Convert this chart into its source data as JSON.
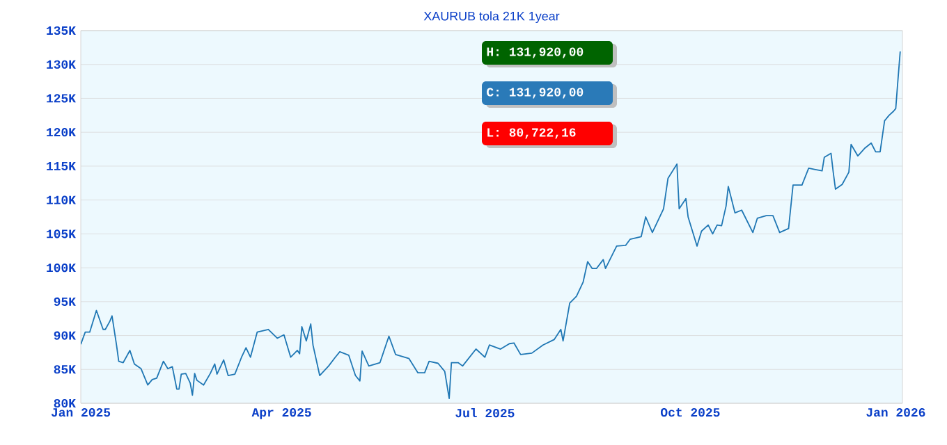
{
  "chart_data": {
    "type": "line",
    "title": "XAURUB tola 21K 1year",
    "x": [
      "2025-01-01",
      "2025-01-03",
      "2025-01-05",
      "2025-01-08",
      "2025-01-11",
      "2025-01-12",
      "2025-01-14",
      "2025-01-15",
      "2025-01-17",
      "2025-01-18",
      "2025-01-20",
      "2025-01-23",
      "2025-01-25",
      "2025-01-28",
      "2025-01-31",
      "2025-02-02",
      "2025-02-04",
      "2025-02-07",
      "2025-02-09",
      "2025-02-11",
      "2025-02-13",
      "2025-02-14",
      "2025-02-15",
      "2025-02-17",
      "2025-02-19",
      "2025-02-20",
      "2025-02-21",
      "2025-02-22",
      "2025-02-25",
      "2025-02-28",
      "2025-03-02",
      "2025-03-03",
      "2025-03-06",
      "2025-03-08",
      "2025-03-11",
      "2025-03-14",
      "2025-03-16",
      "2025-03-18",
      "2025-03-21",
      "2025-03-26",
      "2025-03-30",
      "2025-04-02",
      "2025-04-05",
      "2025-04-08",
      "2025-04-09",
      "2025-04-10",
      "2025-04-12",
      "2025-04-14",
      "2025-04-15",
      "2025-04-18",
      "2025-04-22",
      "2025-04-25",
      "2025-04-27",
      "2025-05-01",
      "2025-05-04",
      "2025-05-06",
      "2025-05-07",
      "2025-05-10",
      "2025-05-15",
      "2025-05-19",
      "2025-05-22",
      "2025-05-28",
      "2025-06-01",
      "2025-06-04",
      "2025-06-06",
      "2025-06-10",
      "2025-06-13",
      "2025-06-15",
      "2025-06-16",
      "2025-06-19",
      "2025-06-21",
      "2025-06-27",
      "2025-07-01",
      "2025-07-03",
      "2025-07-08",
      "2025-07-12",
      "2025-07-14",
      "2025-07-17",
      "2025-07-22",
      "2025-07-27",
      "2025-08-01",
      "2025-08-04",
      "2025-08-05",
      "2025-08-08",
      "2025-08-11",
      "2025-08-14",
      "2025-08-16",
      "2025-08-18",
      "2025-08-20",
      "2025-08-23",
      "2025-08-24",
      "2025-08-29",
      "2025-09-02",
      "2025-09-04",
      "2025-09-09",
      "2025-09-11",
      "2025-09-14",
      "2025-09-19",
      "2025-09-21",
      "2025-09-25",
      "2025-09-26",
      "2025-09-29",
      "2025-09-30",
      "2025-10-04",
      "2025-10-06",
      "2025-10-09",
      "2025-10-11",
      "2025-10-13",
      "2025-10-15",
      "2025-10-17",
      "2025-10-18",
      "2025-10-21",
      "2025-10-24",
      "2025-10-29",
      "2025-10-31",
      "2025-11-04",
      "2025-11-07",
      "2025-11-10",
      "2025-11-14",
      "2025-11-16",
      "2025-11-20",
      "2025-11-23",
      "2025-11-26",
      "2025-11-29",
      "2025-11-30",
      "2025-12-03",
      "2025-12-04",
      "2025-12-05",
      "2025-12-08",
      "2025-12-11",
      "2025-12-12",
      "2025-12-15",
      "2025-12-18",
      "2025-12-21",
      "2025-12-23",
      "2025-12-25",
      "2025-12-27",
      "2025-12-29",
      "2025-12-31",
      "2026-01-01",
      "2026-01-02",
      "2026-01-03"
    ],
    "series": [
      {
        "color": "#1f77b4",
        "values": [
          88700,
          90500,
          90500,
          93700,
          90900,
          90900,
          92100,
          92900,
          88600,
          86200,
          86000,
          87800,
          85800,
          85100,
          82700,
          83500,
          83700,
          86200,
          85100,
          85400,
          82100,
          82100,
          84300,
          84400,
          83000,
          81200,
          84400,
          83400,
          82700,
          84400,
          85800,
          84300,
          86400,
          84100,
          84300,
          86800,
          88200,
          86800,
          90500,
          90900,
          89600,
          90100,
          86800,
          87800,
          87300,
          91300,
          89200,
          91700,
          88600,
          84100,
          85500,
          86800,
          87600,
          87100,
          84100,
          83300,
          87700,
          85500,
          86000,
          89900,
          87200,
          86600,
          84500,
          84500,
          86200,
          85900,
          84700,
          80700,
          86000,
          86000,
          85500,
          88000,
          86800,
          88600,
          88000,
          88800,
          88900,
          87200,
          87400,
          88600,
          89400,
          90900,
          89200,
          94800,
          95800,
          97900,
          100900,
          99900,
          99900,
          101200,
          99900,
          103200,
          103300,
          104200,
          104600,
          107500,
          105200,
          108700,
          113200,
          115300,
          108700,
          110200,
          107500,
          103200,
          105400,
          106300,
          105000,
          106300,
          106200,
          109100,
          112000,
          108100,
          108500,
          105200,
          107300,
          107700,
          107700,
          105200,
          105800,
          112200,
          112200,
          114700,
          114500,
          114300,
          116300,
          116900,
          114100,
          111600,
          112300,
          114100,
          118200,
          116500,
          117600,
          118400,
          117100,
          117100,
          121700,
          122500,
          123100,
          123500,
          127800,
          131920
        ]
      }
    ],
    "xlim": [
      "2025-01-01",
      "2026-01-04"
    ],
    "xticks": [
      {
        "value": "2025-01-01",
        "label": "Jan 2025"
      },
      {
        "value": "2025-04-01",
        "label": "Apr 2025"
      },
      {
        "value": "2025-07-01",
        "label": "Jul 2025"
      },
      {
        "value": "2025-10-01",
        "label": "Oct 2025"
      },
      {
        "value": "2026-01-01",
        "label": "Jan 2026"
      }
    ],
    "ylim": [
      80000,
      135000
    ],
    "yticks": [
      {
        "value": 80000,
        "label": "80K"
      },
      {
        "value": 85000,
        "label": "85K"
      },
      {
        "value": 90000,
        "label": "90K"
      },
      {
        "value": 95000,
        "label": "95K"
      },
      {
        "value": 100000,
        "label": "100K"
      },
      {
        "value": 105000,
        "label": "105K"
      },
      {
        "value": 110000,
        "label": "110K"
      },
      {
        "value": 115000,
        "label": "115K"
      },
      {
        "value": 120000,
        "label": "120K"
      },
      {
        "value": 125000,
        "label": "125K"
      },
      {
        "value": 130000,
        "label": "130K"
      },
      {
        "value": 135000,
        "label": "135K"
      }
    ],
    "grid": "y",
    "marker": "none",
    "line_style": "solid",
    "annotations": [
      "H: 131,920,00",
      "C: 131,920,00",
      "L: 80,722,16"
    ]
  }
}
